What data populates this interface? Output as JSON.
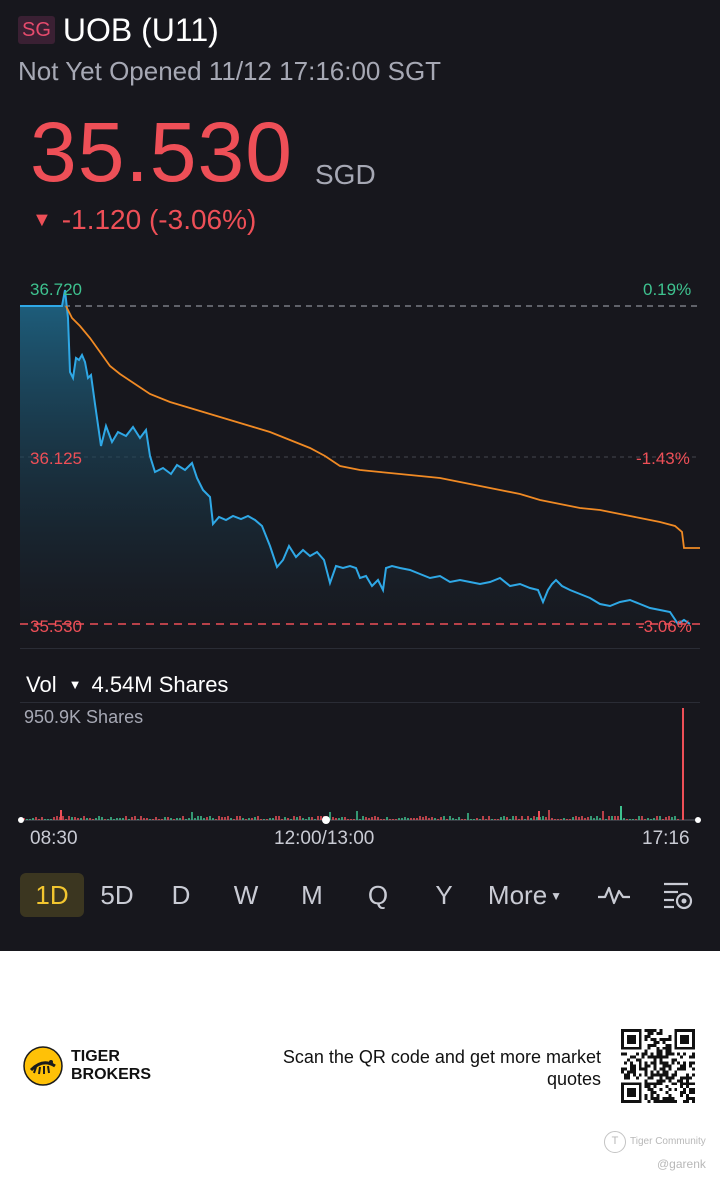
{
  "header": {
    "market_badge": "SG",
    "title": "UOB (U11)",
    "status": "Not Yet Opened 11/12 17:16:00 SGT"
  },
  "quote": {
    "price": "35.530",
    "currency": "SGD",
    "change_arrow": "▼",
    "change": "-1.120 (-3.06%)"
  },
  "chart": {
    "high_price": "36.720",
    "mid_price": "36.125",
    "low_price": "35.530",
    "high_pct": "0.19%",
    "mid_pct": "-1.43%",
    "low_pct": "-3.06%",
    "colors": {
      "price_line": "#2fa8e6",
      "avg_line": "#f08a24",
      "down": "#ee4f57",
      "up": "#3ec28f"
    }
  },
  "volume": {
    "label": "Vol",
    "total": "4.54M Shares",
    "max": "950.9K Shares"
  },
  "x_axis": {
    "start": "08:30",
    "middle": "12:00/13:00",
    "end": "17:16"
  },
  "tabs": {
    "items": [
      "1D",
      "5D",
      "D",
      "W",
      "M",
      "Q",
      "Y"
    ],
    "active": "1D",
    "more": "More",
    "indicator_icon": "indicator-icon",
    "settings_icon": "chart-settings-icon"
  },
  "footer": {
    "brand_line1": "TIGER",
    "brand_line2": "BROKERS",
    "scan_text": "Scan the QR code and get more market quotes",
    "watermark": "Tiger Community",
    "watermark_user": "@garenk"
  }
}
